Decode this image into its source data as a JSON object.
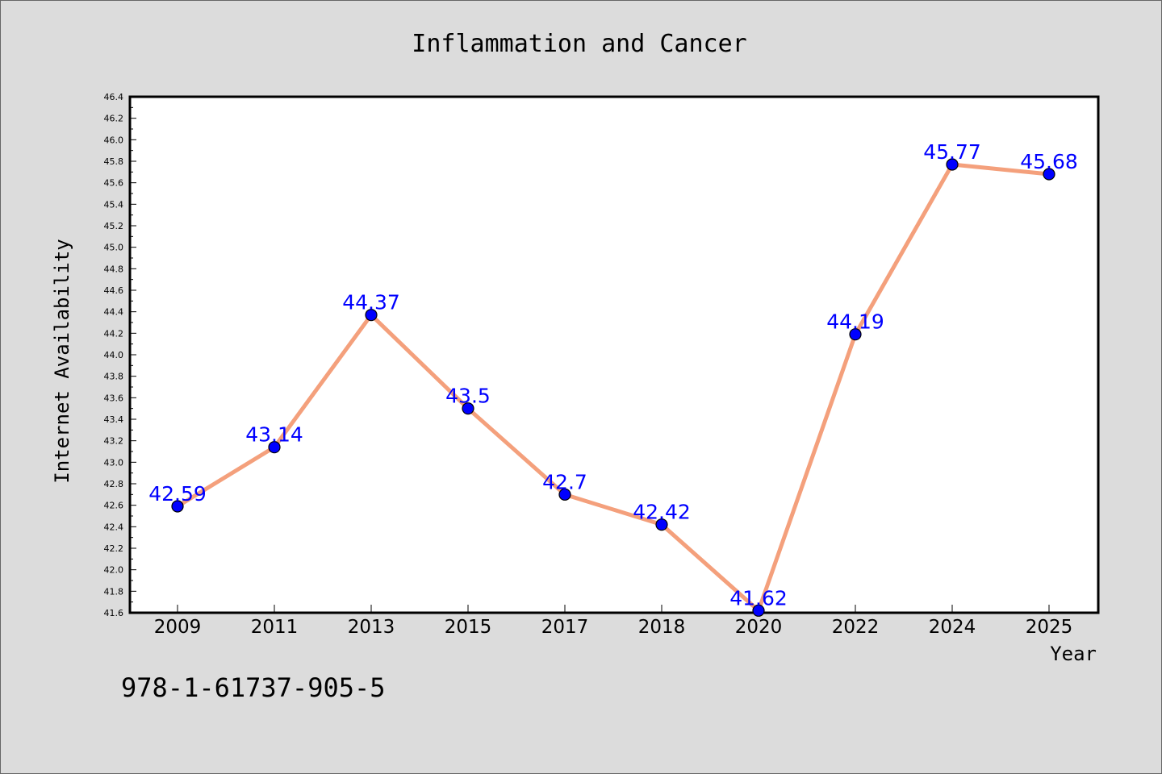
{
  "chart_data": {
    "type": "line",
    "title": "Inflammation and Cancer",
    "xlabel": "Year",
    "ylabel": "Internet Availability",
    "categories": [
      "2009",
      "2011",
      "2013",
      "2015",
      "2017",
      "2018",
      "2020",
      "2022",
      "2024",
      "2025"
    ],
    "values": [
      42.59,
      43.14,
      44.37,
      43.5,
      42.7,
      42.42,
      41.62,
      44.19,
      45.77,
      45.68
    ],
    "data_labels": [
      "42.59",
      "43.14",
      "44.37",
      "43.5",
      "42.7",
      "42.42",
      "41.62",
      "44.19",
      "45.77",
      "45.68"
    ],
    "ylim": [
      41.6,
      46.4
    ],
    "yticks": [
      "41.6",
      "41.8",
      "42.0",
      "42.2",
      "42.4",
      "42.6",
      "42.8",
      "43.0",
      "43.2",
      "43.4",
      "43.6",
      "43.8",
      "44.0",
      "44.2",
      "44.4",
      "44.6",
      "44.8",
      "45.0",
      "45.2",
      "45.4",
      "45.6",
      "45.8",
      "46.0",
      "46.2",
      "46.4"
    ],
    "grid": false,
    "line_color": "#f4a07c",
    "marker_color": "#0000ff",
    "label_color": "#0000ff",
    "background_color": "#dcdcdc",
    "plot_background_color": "#ffffff"
  },
  "footer_text": "978-1-61737-905-5"
}
